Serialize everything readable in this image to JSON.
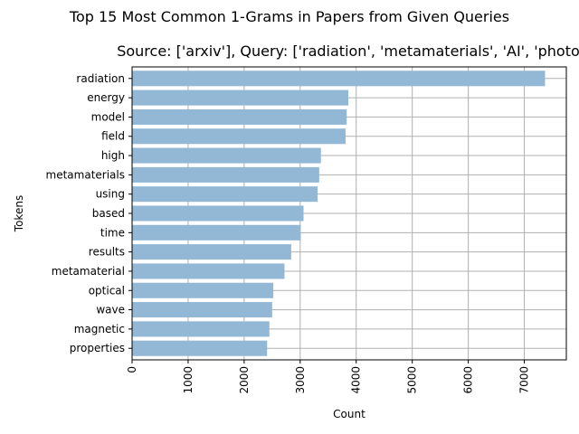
{
  "chart_data": {
    "type": "bar",
    "orientation": "horizontal",
    "suptitle": "Top 15 Most Common 1-Grams in Papers from Given Queries",
    "title": "Source: ['arxiv'], Query: ['radiation', 'metamaterials', 'AI', 'photo",
    "xlabel": "Count",
    "ylabel": "Tokens",
    "categories": [
      "radiation",
      "energy",
      "model",
      "field",
      "high",
      "metamaterials",
      "using",
      "based",
      "time",
      "results",
      "metamaterial",
      "optical",
      "wave",
      "magnetic",
      "properties"
    ],
    "values": [
      7370,
      3860,
      3830,
      3810,
      3370,
      3340,
      3310,
      3060,
      3010,
      2840,
      2720,
      2520,
      2500,
      2450,
      2410
    ],
    "xlim": [
      0,
      7750
    ],
    "xticks": [
      0,
      1000,
      2000,
      3000,
      4000,
      5000,
      6000,
      7000
    ],
    "bar_color": "#92b8d6",
    "grid": true,
    "xtick_rotation": "vertical"
  }
}
